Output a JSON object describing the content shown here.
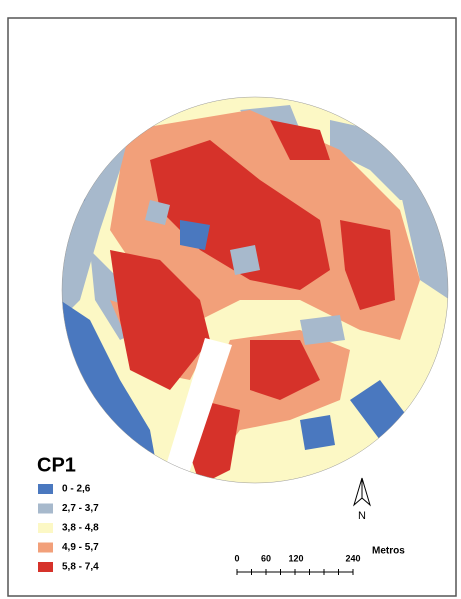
{
  "map": {
    "legend": {
      "title": "CP1",
      "items": [
        {
          "label": "0 - 2,6",
          "color": "#4a78bf"
        },
        {
          "label": "2,7 - 3,7",
          "color": "#a7b9cc"
        },
        {
          "label": "3,8 - 4,8",
          "color": "#fcf8c5"
        },
        {
          "label": "4,9 - 5,7",
          "color": "#f2a07a"
        },
        {
          "label": "5,8 - 7,4",
          "color": "#d6322a"
        }
      ]
    },
    "north": "N",
    "scale": {
      "ticks": [
        "0",
        "60",
        "120",
        "240"
      ],
      "unit": "Metros"
    }
  }
}
